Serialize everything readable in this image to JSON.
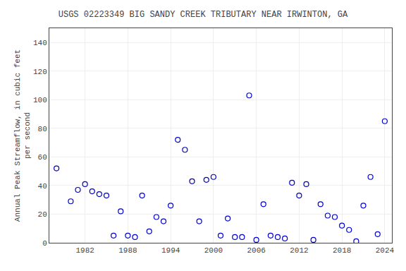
{
  "chart_data": {
    "type": "scatter",
    "title": "USGS 02223349 BIG SANDY CREEK TRIBUTARY NEAR IRWINTON, GA",
    "ylabel": "Annual Peak Streamflow, in cubic feet\nper second",
    "x": [
      1978,
      1980,
      1981,
      1982,
      1983,
      1984,
      1985,
      1986,
      1987,
      1988,
      1989,
      1990,
      1991,
      1992,
      1993,
      1994,
      1995,
      1996,
      1997,
      1998,
      1999,
      2000,
      2001,
      2002,
      2003,
      2004,
      2005,
      2006,
      2007,
      2008,
      2009,
      2010,
      2011,
      2012,
      2013,
      2014,
      2015,
      2016,
      2017,
      2018,
      2019,
      2020,
      2021,
      2022,
      2023,
      2024
    ],
    "values": [
      52,
      29,
      37,
      41,
      36,
      34,
      33,
      5,
      22,
      5,
      4,
      33,
      8,
      18,
      15,
      26,
      72,
      65,
      43,
      15,
      44,
      46,
      5,
      17,
      4,
      4,
      103,
      2,
      27,
      5,
      4,
      3,
      42,
      33,
      41,
      2,
      27,
      19,
      18,
      12,
      9,
      1,
      26,
      46,
      6,
      85
    ],
    "xlim": [
      1977,
      2025
    ],
    "ylim": [
      0,
      150
    ],
    "xticks": [
      1982,
      1988,
      1994,
      2000,
      2006,
      2012,
      2018,
      2024
    ],
    "yticks": [
      0,
      20,
      40,
      60,
      80,
      100,
      120,
      140
    ],
    "color": "#0000cc",
    "marker": "circle-open",
    "grid": true
  }
}
